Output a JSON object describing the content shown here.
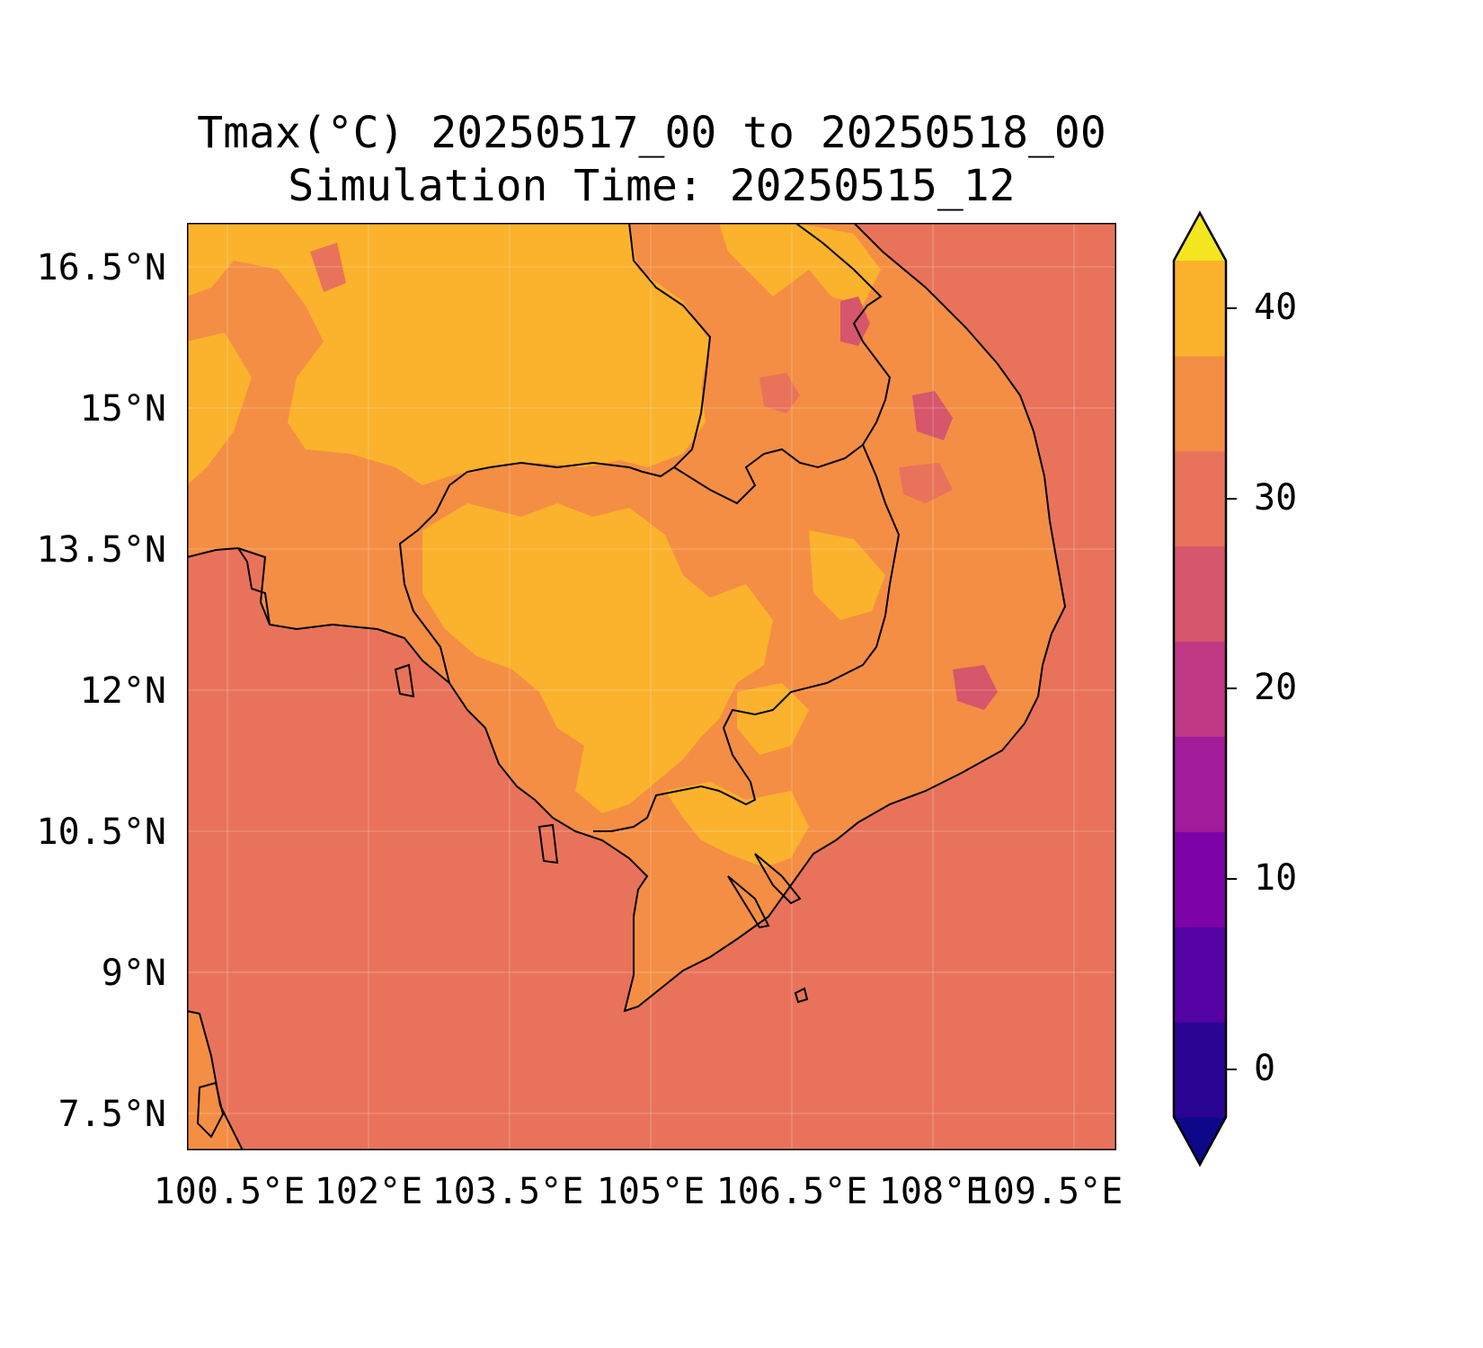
{
  "title": "Tmax(°C) 20250517_00 to 20250518_00",
  "subtitle": "Simulation Time: 20250515_12",
  "lat_labels": [
    "16.5°N",
    "15°N",
    "13.5°N",
    "12°N",
    "10.5°N",
    "9°N",
    "7.5°N"
  ],
  "lon_labels": [
    "100.5°E",
    "102°E",
    "103.5°E",
    "105°E",
    "106.5°E",
    "108°E",
    "109.5°E"
  ],
  "colorbar": {
    "tick_labels": [
      "40",
      "30",
      "20",
      "10",
      "0"
    ],
    "range": [
      -5,
      45
    ],
    "extend": "both",
    "colors": [
      "#0d0887",
      "#2a0593",
      "#5502a4",
      "#7d03a8",
      "#a11b9b",
      "#bf3984",
      "#d6566b",
      "#e8735a",
      "#f48e44",
      "#fbb22c",
      "#f3e620"
    ]
  },
  "map": {
    "ocean_color": "#e8735a",
    "land_high_color": "#fbb22c",
    "land_mid_color": "#f48e44",
    "land_low_color": "#d6566b"
  }
}
